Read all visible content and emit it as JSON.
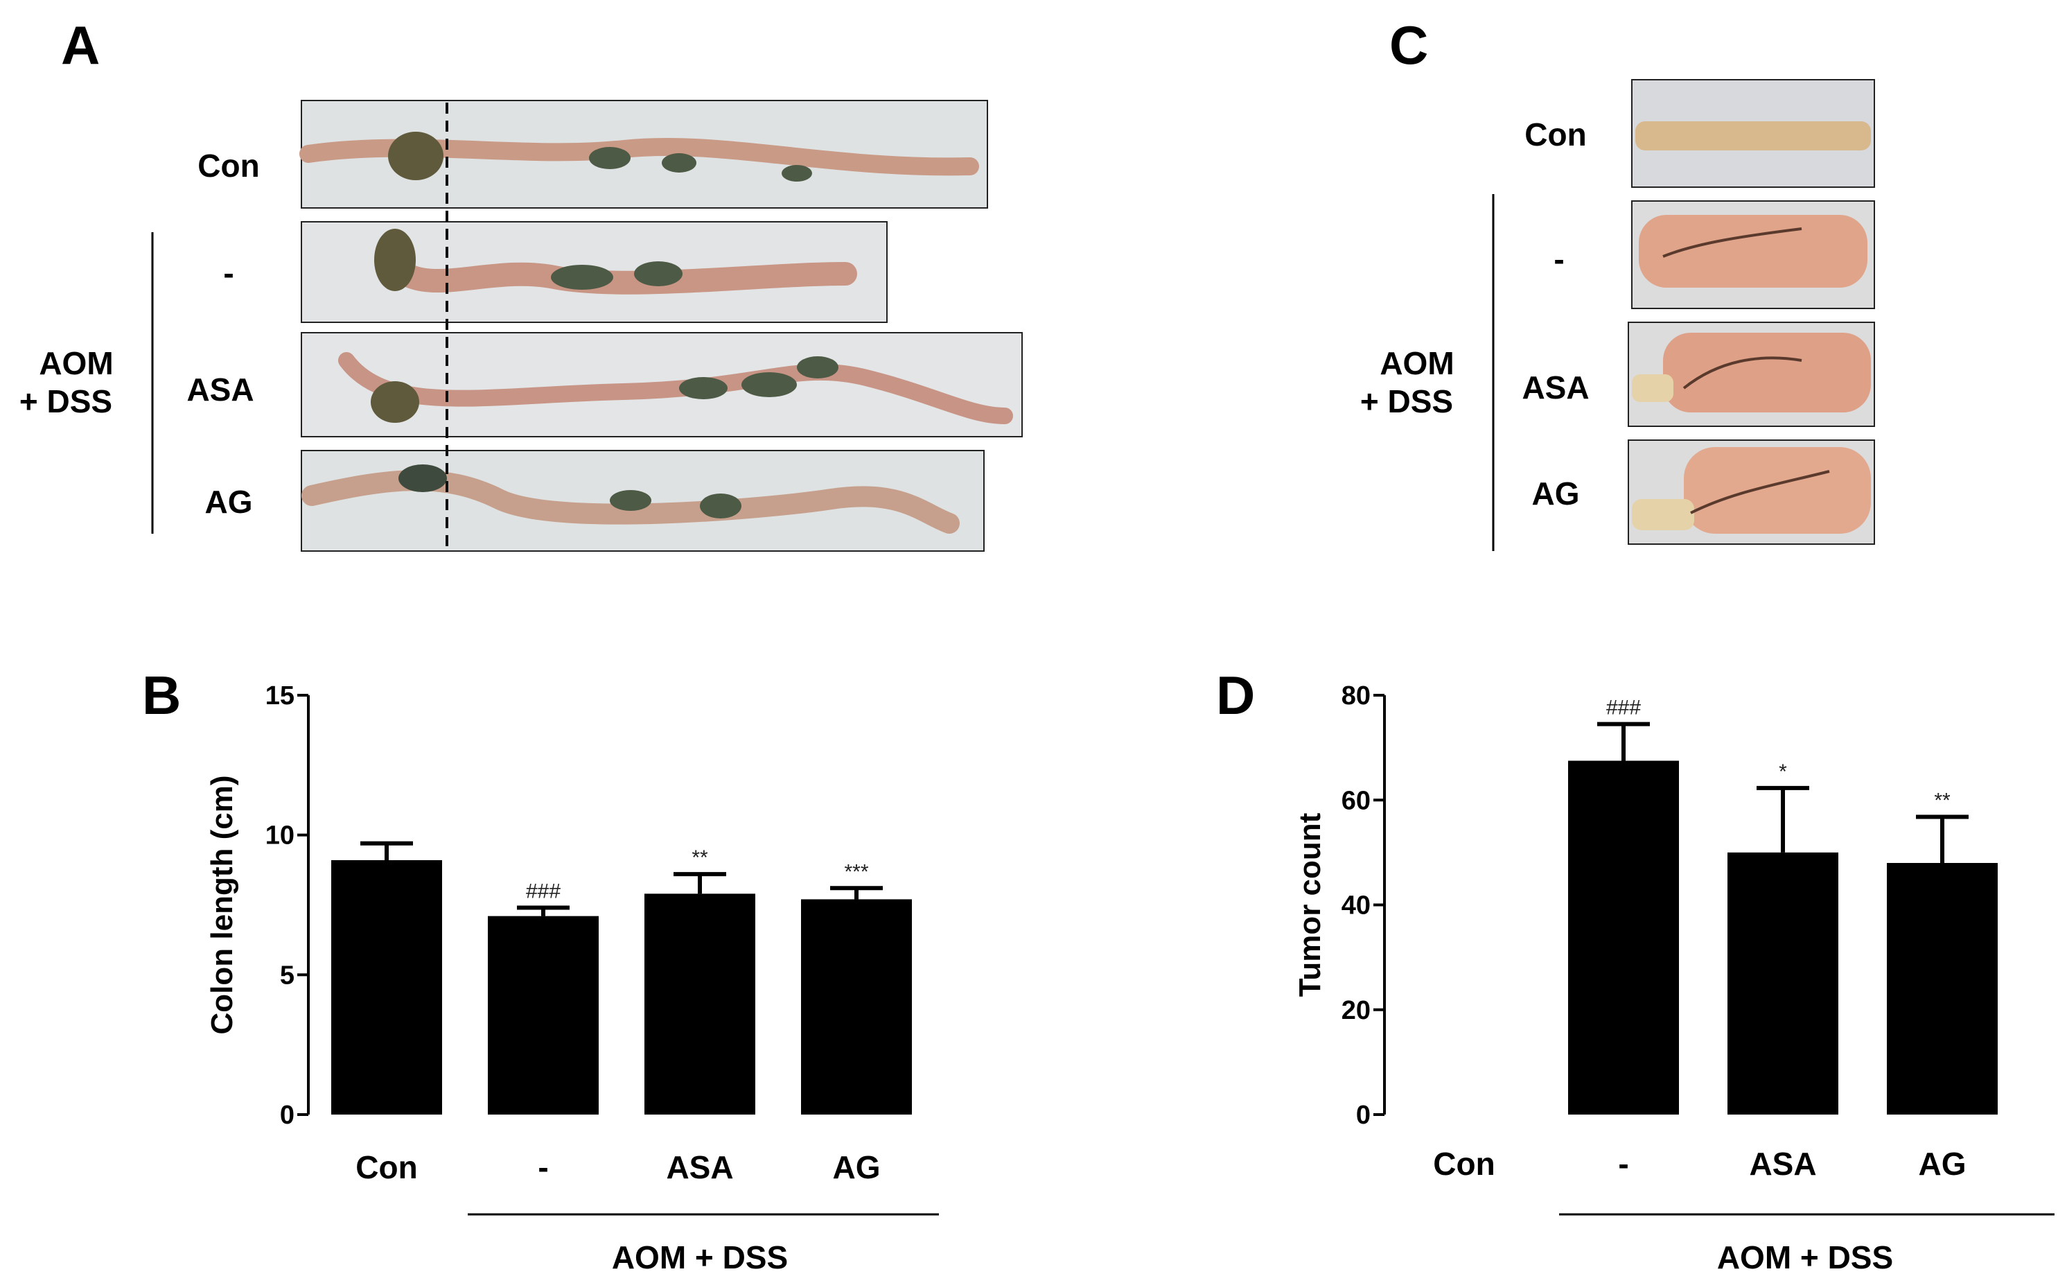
{
  "panels": {
    "A": {
      "letter": "A",
      "rows": [
        {
          "label": "Con",
          "pad": "#dfe2e3",
          "tissue": "#c99a86"
        },
        {
          "label": "-",
          "pad": "#e2e4e5",
          "tissue": "#c99585"
        },
        {
          "label": "ASA",
          "pad": "#e3e5e6",
          "tissue": "#c79486"
        },
        {
          "label": "AG",
          "pad": "#dfe2e2",
          "tissue": "#c6a08c"
        }
      ],
      "group_label_line1": "AOM",
      "group_label_line2": "+ DSS"
    },
    "C": {
      "letter": "C",
      "rows": [
        {
          "label": "Con",
          "pad": "#d7d9dc",
          "tissue": "#d8b98e"
        },
        {
          "label": "-",
          "pad": "#dcdcdc",
          "tissue": "#e0a48a"
        },
        {
          "label": "ASA",
          "pad": "#dcdcdc",
          "tissue": "#dfa088"
        },
        {
          "label": "AG",
          "pad": "#dcdcdc",
          "tissue": "#e2a98e"
        }
      ],
      "group_label_line1": "AOM",
      "group_label_line2": "+ DSS"
    },
    "B": {
      "letter": "B",
      "group_label": "AOM + DSS"
    },
    "D": {
      "letter": "D",
      "group_label": "AOM + DSS"
    }
  },
  "chart_data": [
    {
      "type": "bar",
      "panel": "B",
      "title": "",
      "xlabel": "",
      "ylabel": "Colon length (cm)",
      "categories": [
        "Con",
        "-",
        "ASA",
        "AG"
      ],
      "values": [
        9.1,
        7.1,
        7.9,
        7.7
      ],
      "errors": [
        0.6,
        0.3,
        0.7,
        0.4
      ],
      "significance": [
        "",
        "###",
        "**",
        "***"
      ],
      "ylim": [
        0,
        15
      ],
      "yticks": [
        0,
        5,
        10,
        15
      ],
      "ytick_labels": [
        "0",
        "5",
        "10",
        "15"
      ],
      "bar_color": "#000000",
      "grid": false
    },
    {
      "type": "bar",
      "panel": "D",
      "title": "",
      "xlabel": "",
      "ylabel": "Tumor count",
      "categories": [
        "Con",
        "-",
        "ASA",
        "AG"
      ],
      "values": [
        0,
        67.5,
        50,
        48
      ],
      "errors": [
        0,
        7,
        12.3,
        8.8
      ],
      "significance": [
        "",
        "###",
        "*",
        "**"
      ],
      "ylim": [
        0,
        80
      ],
      "yticks": [
        0,
        20,
        40,
        60,
        80
      ],
      "ytick_labels": [
        "0",
        "20",
        "40",
        "60",
        "80"
      ],
      "bar_color": "#000000",
      "grid": false
    }
  ]
}
